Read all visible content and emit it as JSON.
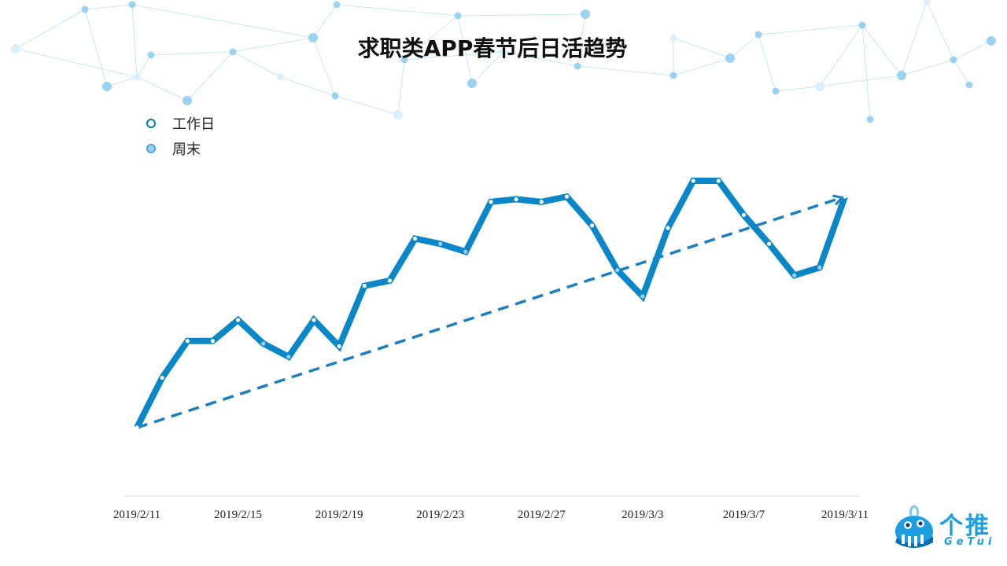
{
  "title": "求职类APP春节后日活趋势",
  "legend": [
    {
      "label": "工作日",
      "kind": "workday"
    },
    {
      "label": "周末",
      "kind": "weekend"
    }
  ],
  "logo": {
    "cn": "个推",
    "en": "GeTui",
    "icon": "whale-logo-icon"
  },
  "colors": {
    "line": "#0a87c9",
    "trend": "#1a7fc1",
    "workday_marker": "#0077b6",
    "weekend_marker": "#4aa3df",
    "network": "#9fd3f0"
  },
  "chart_data": {
    "type": "line",
    "title": "求职类APP春节后日活趋势",
    "x_tick_labels": [
      "2019/2/11",
      "2019/2/15",
      "2019/2/19",
      "2019/2/23",
      "2019/2/27",
      "2019/3/3",
      "2019/3/7",
      "2019/3/11"
    ],
    "x": [
      "2019/2/11",
      "2019/2/12",
      "2019/2/13",
      "2019/2/14",
      "2019/2/15",
      "2019/2/16",
      "2019/2/17",
      "2019/2/18",
      "2019/2/19",
      "2019/2/20",
      "2019/2/21",
      "2019/2/22",
      "2019/2/23",
      "2019/2/24",
      "2019/2/25",
      "2019/2/26",
      "2019/2/27",
      "2019/2/28",
      "2019/3/1",
      "2019/3/2",
      "2019/3/3",
      "2019/3/4",
      "2019/3/5",
      "2019/3/6",
      "2019/3/7",
      "2019/3/8",
      "2019/3/9",
      "2019/3/10",
      "2019/3/11"
    ],
    "day_type": [
      "workday",
      "workday",
      "workday",
      "workday",
      "workday",
      "weekend",
      "weekend",
      "workday",
      "workday",
      "workday",
      "workday",
      "workday",
      "weekend",
      "weekend",
      "workday",
      "workday",
      "workday",
      "workday",
      "workday",
      "weekend",
      "weekend",
      "workday",
      "workday",
      "workday",
      "workday",
      "workday",
      "weekend",
      "weekend",
      "workday"
    ],
    "series": [
      {
        "name": "日活",
        "values": [
          0.0,
          0.19,
          0.33,
          0.33,
          0.41,
          0.32,
          0.27,
          0.41,
          0.31,
          0.54,
          0.56,
          0.72,
          0.7,
          0.67,
          0.86,
          0.87,
          0.86,
          0.88,
          0.77,
          0.6,
          0.5,
          0.76,
          0.94,
          0.94,
          0.81,
          0.7,
          0.58,
          0.61,
          0.88
        ]
      }
    ],
    "trend_line": {
      "style": "dashed",
      "arrow": true,
      "from_index": 0,
      "to_index": 28
    },
    "y_axis_visible": false,
    "grid": false,
    "legend_position": "top-left"
  }
}
